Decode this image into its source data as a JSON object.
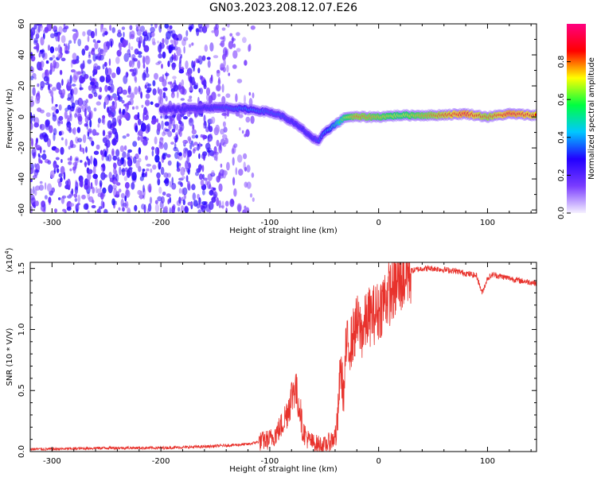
{
  "figure": {
    "title": "GN03.2023.208.12.07.E26"
  },
  "chart_data": [
    {
      "type": "heatmap",
      "title": "GN03.2023.208.12.07.E26",
      "xlabel": "Height of straight line (km)",
      "ylabel": "Frequency (Hz)",
      "xlim": [
        -320,
        145
      ],
      "ylim": [
        -62,
        60
      ],
      "x_ticks": [
        -300,
        -200,
        -100,
        0,
        100
      ],
      "x_tick_labels": [
        "-300",
        "-200",
        "-100",
        "0",
        "100"
      ],
      "y_ticks": [
        -60,
        -40,
        -20,
        0,
        20,
        40,
        60
      ],
      "y_tick_labels": [
        "-60",
        "-40",
        "-20",
        "0",
        "20",
        "40",
        "60"
      ],
      "colorbar": {
        "label": "Normalized spectral amplitude",
        "range": [
          0.0,
          1.0
        ],
        "ticks": [
          0.0,
          0.2,
          0.4,
          0.6,
          0.8
        ],
        "tick_labels": [
          "0.0",
          "0.2",
          "0.4",
          "0.6",
          "0.8"
        ],
        "colormap": [
          "#f5f0ff",
          "#7a3cff",
          "#2200ff",
          "#00c8ff",
          "#00ff40",
          "#ffff00",
          "#ff0000",
          "#ff0080"
        ]
      },
      "ridge": {
        "x": [
          -200,
          -180,
          -160,
          -140,
          -120,
          -100,
          -90,
          -80,
          -70,
          -60,
          -55,
          -50,
          -40,
          -30,
          -20,
          0,
          20,
          50,
          80,
          100,
          120,
          145
        ],
        "y": [
          5,
          5,
          6,
          6,
          5,
          3,
          1,
          -3,
          -8,
          -14,
          -16,
          -10,
          -5,
          0,
          0,
          0,
          1,
          1,
          2,
          0,
          2,
          1
        ],
        "amplitude": [
          0.25,
          0.3,
          0.3,
          0.35,
          0.4,
          0.35,
          0.35,
          0.3,
          0.3,
          0.3,
          0.35,
          0.4,
          0.5,
          0.7,
          0.8,
          0.75,
          0.7,
          0.8,
          0.9,
          0.8,
          0.9,
          0.85
        ]
      },
      "grid": false
    },
    {
      "type": "line",
      "xlabel": "Height of straight line (km)",
      "ylabel": "SNR (10 * V/V)",
      "y_multiplier_label": "(x10",
      "y_multiplier_exp": "4",
      "y_multiplier_close": ")",
      "xlim": [
        -320,
        145
      ],
      "ylim": [
        0,
        1.55
      ],
      "x_ticks": [
        -300,
        -200,
        -100,
        0,
        100
      ],
      "x_tick_labels": [
        "-300",
        "-200",
        "-100",
        "0",
        "100"
      ],
      "y_ticks": [
        0,
        0.5,
        1.0,
        1.5
      ],
      "y_tick_labels": [
        "0.0",
        "0.5",
        "1.0",
        "1.5"
      ],
      "color": "#e8322c",
      "series": [
        {
          "x": [
            -320,
            -300,
            -250,
            -200,
            -160,
            -140,
            -120,
            -110,
            -100,
            -95,
            -90,
            -85,
            -80,
            -77,
            -75,
            -72,
            -70,
            -65,
            -60,
            -55,
            -50,
            -45,
            -40,
            -38,
            -35,
            -32,
            -30,
            -25,
            -20,
            -15,
            -10,
            -5,
            0,
            5,
            10,
            15,
            20,
            25,
            30,
            40,
            50,
            60,
            70,
            80,
            90,
            95,
            100,
            105,
            110,
            120,
            130,
            145
          ],
          "y": [
            0.02,
            0.02,
            0.03,
            0.03,
            0.04,
            0.05,
            0.06,
            0.08,
            0.1,
            0.14,
            0.2,
            0.3,
            0.45,
            0.55,
            0.45,
            0.35,
            0.18,
            0.1,
            0.07,
            0.06,
            0.05,
            0.08,
            0.12,
            0.2,
            0.7,
            0.45,
            0.85,
            0.9,
            1.05,
            0.98,
            1.1,
            1.12,
            1.15,
            1.25,
            1.3,
            1.35,
            1.4,
            1.45,
            1.48,
            1.5,
            1.5,
            1.49,
            1.48,
            1.46,
            1.44,
            1.3,
            1.42,
            1.45,
            1.44,
            1.42,
            1.4,
            1.38
          ]
        }
      ],
      "grid": false
    }
  ]
}
